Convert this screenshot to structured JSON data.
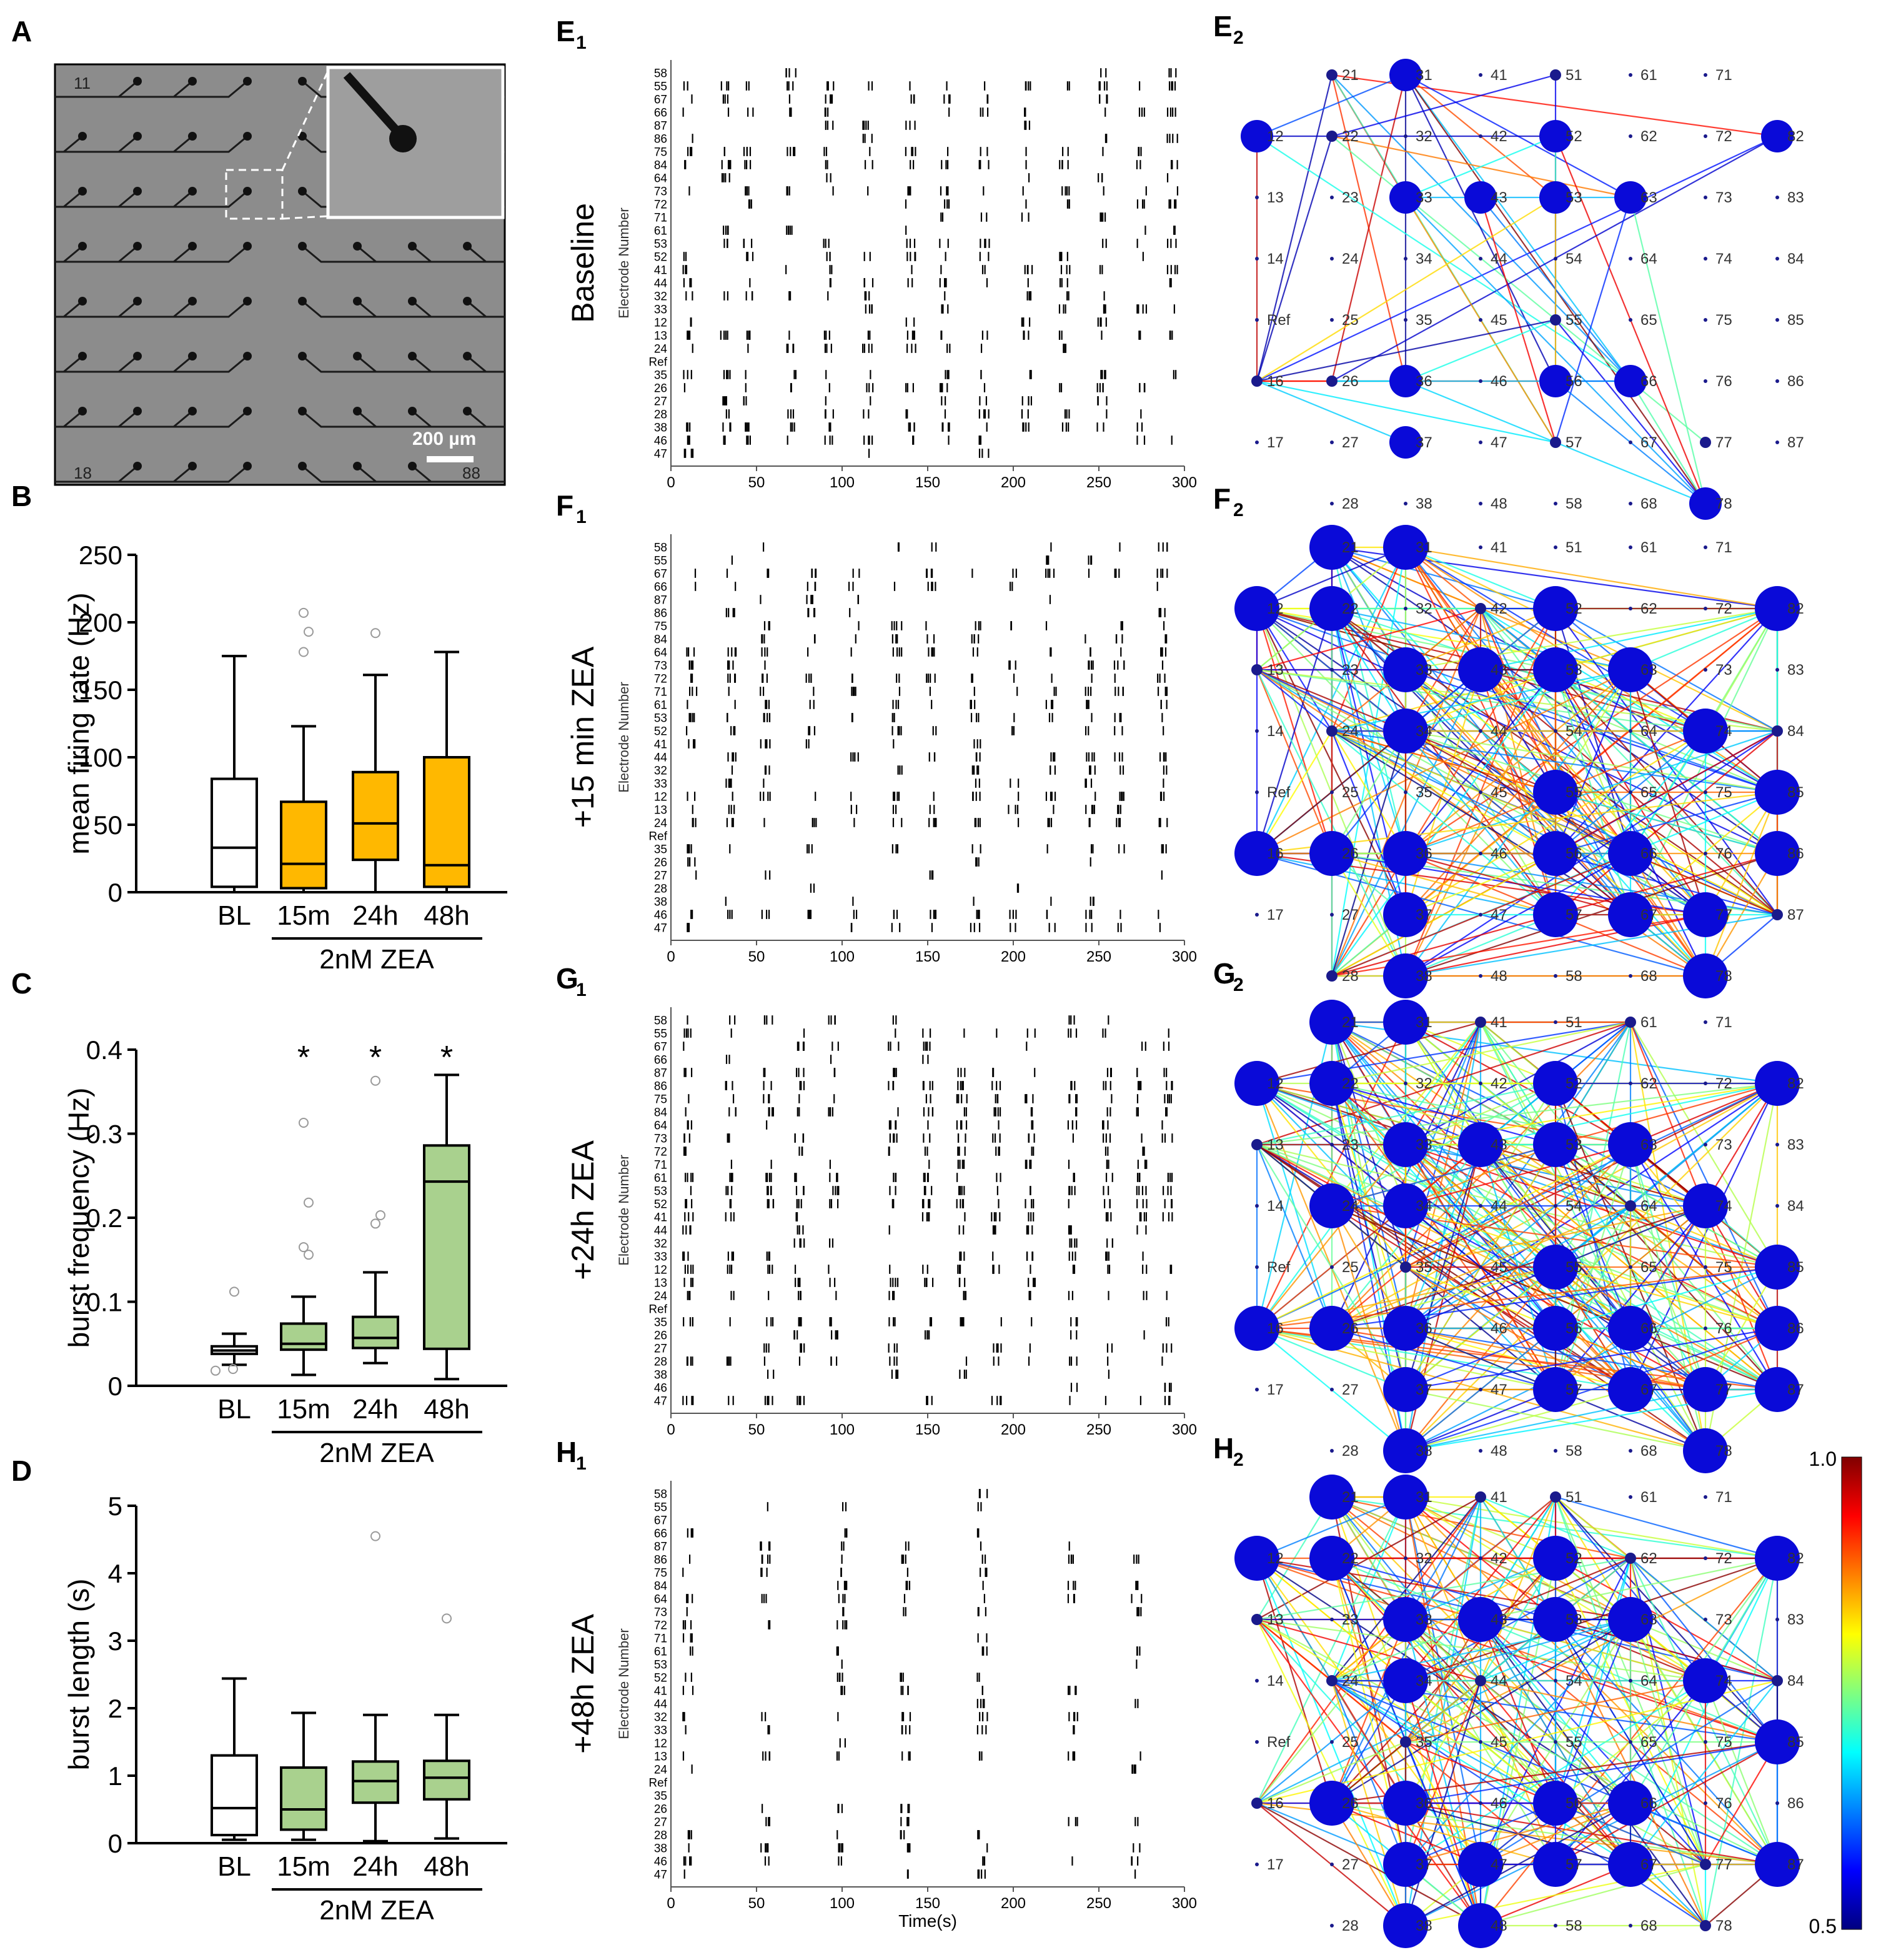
{
  "figure": {
    "microscopy": {
      "label": "A",
      "scale_bar": "200 µm",
      "corner_labels": [
        "11",
        "18",
        "88"
      ]
    }
  },
  "chart_data": [
    {
      "id": "B",
      "label": "B",
      "type": "boxplot",
      "ylabel": "mean firing rate (Hz)",
      "ylim": [
        0,
        250
      ],
      "yticks": [
        "0",
        "50",
        "100",
        "150",
        "200",
        "250"
      ],
      "categories": [
        "BL",
        "15m",
        "24h",
        "48h"
      ],
      "group_label": "2nM ZEA",
      "boxes": [
        {
          "min": 0,
          "q1": 4,
          "median": 33,
          "q3": 84,
          "max": 175,
          "color": "#ffffff",
          "outliers": [],
          "star": ""
        },
        {
          "min": 0,
          "q1": 3,
          "median": 21,
          "q3": 67,
          "max": 123,
          "color": "#ffb800",
          "outliers": [
            178,
            193,
            207
          ],
          "star": ""
        },
        {
          "min": 0,
          "q1": 24,
          "median": 51,
          "q3": 89,
          "max": 161,
          "color": "#ffb800",
          "outliers": [
            192
          ],
          "star": ""
        },
        {
          "min": 0,
          "q1": 4,
          "median": 20,
          "q3": 100,
          "max": 178,
          "color": "#ffb800",
          "outliers": [],
          "star": ""
        }
      ]
    },
    {
      "id": "C",
      "label": "C",
      "type": "boxplot",
      "ylabel": "burst frequency (Hz)",
      "ylim": [
        0,
        0.4
      ],
      "yticks": [
        "0",
        "0.1",
        "0.2",
        "0.3",
        "0.4"
      ],
      "categories": [
        "BL",
        "15m",
        "24h",
        "48h"
      ],
      "group_label": "2nM ZEA",
      "boxes": [
        {
          "min": 0.025,
          "q1": 0.038,
          "median": 0.042,
          "q3": 0.047,
          "max": 0.062,
          "color": "#ffffff",
          "outliers": [
            0.112,
            0.02,
            0.018
          ],
          "star": ""
        },
        {
          "min": 0.013,
          "q1": 0.043,
          "median": 0.05,
          "q3": 0.074,
          "max": 0.106,
          "color": "#a9d18e",
          "outliers": [
            0.313,
            0.218,
            0.165,
            0.156
          ],
          "star": "*"
        },
        {
          "min": 0.027,
          "q1": 0.045,
          "median": 0.057,
          "q3": 0.082,
          "max": 0.135,
          "color": "#a9d18e",
          "outliers": [
            0.363,
            0.203,
            0.193
          ],
          "star": "*"
        },
        {
          "min": 0.008,
          "q1": 0.044,
          "median": 0.243,
          "q3": 0.286,
          "max": 0.37,
          "color": "#a9d18e",
          "outliers": [],
          "star": "*"
        }
      ]
    },
    {
      "id": "D",
      "label": "D",
      "type": "boxplot",
      "ylabel": "burst length (s)",
      "ylim": [
        0,
        5
      ],
      "yticks": [
        "0",
        "1",
        "2",
        "3",
        "4",
        "5"
      ],
      "categories": [
        "BL",
        "15m",
        "24h",
        "48h"
      ],
      "group_label": "2nM ZEA",
      "boxes": [
        {
          "min": 0.05,
          "q1": 0.12,
          "median": 0.52,
          "q3": 1.3,
          "max": 2.44,
          "color": "#ffffff",
          "outliers": [],
          "star": ""
        },
        {
          "min": 0.05,
          "q1": 0.2,
          "median": 0.5,
          "q3": 1.12,
          "max": 1.93,
          "color": "#a9d18e",
          "outliers": [],
          "star": ""
        },
        {
          "min": 0.03,
          "q1": 0.6,
          "median": 0.92,
          "q3": 1.21,
          "max": 1.9,
          "color": "#a9d18e",
          "outliers": [
            4.55
          ],
          "star": ""
        },
        {
          "min": 0.07,
          "q1": 0.65,
          "median": 0.97,
          "q3": 1.22,
          "max": 1.9,
          "color": "#a9d18e",
          "outliers": [
            3.33
          ],
          "star": ""
        }
      ]
    },
    {
      "type": "raster",
      "panels": [
        {
          "label": "E",
          "sub": "1",
          "condition": "Baseline",
          "seed": 7,
          "bursts": [
            10,
            32,
            45,
            70,
            92,
            115,
            140,
            160,
            183,
            208,
            230,
            252,
            275,
            293
          ]
        },
        {
          "label": "F",
          "sub": "1",
          "condition": "+15 min ZEA",
          "seed": 13,
          "bursts": [
            12,
            35,
            55,
            82,
            107,
            132,
            152,
            178,
            200,
            222,
            245,
            262,
            287
          ]
        },
        {
          "label": "G",
          "sub": "1",
          "condition": "+24h ZEA",
          "seed": 21,
          "bursts": [
            10,
            35,
            57,
            75,
            95,
            130,
            150,
            170,
            190,
            210,
            235,
            255,
            275,
            290
          ]
        },
        {
          "label": "H",
          "sub": "1",
          "condition": "+48h ZEA",
          "seed": 29,
          "bursts": [
            10,
            55,
            100,
            137,
            182,
            235,
            272
          ]
        }
      ],
      "electrodes": [
        "58",
        "55",
        "67",
        "66",
        "87",
        "86",
        "75",
        "84",
        "64",
        "73",
        "72",
        "71",
        "61",
        "53",
        "52",
        "41",
        "44",
        "32",
        "33",
        "12",
        "13",
        "24",
        "Ref",
        "35",
        "26",
        "27",
        "28",
        "38",
        "46",
        "47"
      ],
      "xticks": [
        "0",
        "50",
        "100",
        "150",
        "200",
        "250",
        "300"
      ],
      "xlim": [
        0,
        300
      ],
      "ylabel": "Electrode Number",
      "xlabel": "Time(s)"
    },
    {
      "type": "network",
      "panels": [
        {
          "label": "E",
          "sub": "2",
          "seed": 101,
          "strength": 0.25,
          "active": [
            "21",
            "31",
            "51",
            "12",
            "22",
            "52",
            "82",
            "33",
            "43",
            "53",
            "63",
            "55",
            "16",
            "26",
            "36",
            "56",
            "66",
            "37",
            "57",
            "77",
            "78"
          ],
          "big": [
            "31",
            "12",
            "52",
            "82",
            "33",
            "43",
            "53",
            "63",
            "36",
            "56",
            "66",
            "37",
            "78"
          ]
        },
        {
          "label": "F",
          "sub": "2",
          "seed": 202,
          "strength": 0.55,
          "active": [
            "21",
            "31",
            "12",
            "22",
            "42",
            "52",
            "82",
            "13",
            "33",
            "43",
            "53",
            "63",
            "24",
            "34",
            "74",
            "84",
            "55",
            "85",
            "16",
            "26",
            "36",
            "56",
            "66",
            "86",
            "37",
            "57",
            "67",
            "77",
            "87",
            "28",
            "38",
            "78"
          ],
          "big": [
            "21",
            "31",
            "12",
            "22",
            "52",
            "82",
            "33",
            "43",
            "53",
            "63",
            "34",
            "74",
            "55",
            "85",
            "16",
            "26",
            "36",
            "56",
            "66",
            "86",
            "37",
            "57",
            "67",
            "77",
            "38",
            "78"
          ]
        },
        {
          "label": "G",
          "sub": "2",
          "seed": 303,
          "strength": 0.6,
          "active": [
            "21",
            "31",
            "41",
            "61",
            "12",
            "22",
            "52",
            "82",
            "13",
            "33",
            "43",
            "53",
            "63",
            "24",
            "34",
            "64",
            "74",
            "35",
            "55",
            "85",
            "16",
            "26",
            "36",
            "56",
            "66",
            "86",
            "37",
            "57",
            "67",
            "77",
            "87",
            "38",
            "78"
          ],
          "big": [
            "21",
            "31",
            "12",
            "22",
            "52",
            "82",
            "33",
            "43",
            "53",
            "63",
            "24",
            "34",
            "74",
            "55",
            "85",
            "16",
            "26",
            "36",
            "56",
            "66",
            "86",
            "37",
            "57",
            "67",
            "77",
            "87",
            "38",
            "78"
          ]
        },
        {
          "label": "H",
          "sub": "2",
          "seed": 404,
          "strength": 0.45,
          "active": [
            "21",
            "31",
            "41",
            "51",
            "12",
            "22",
            "52",
            "62",
            "82",
            "13",
            "33",
            "43",
            "53",
            "63",
            "24",
            "34",
            "44",
            "74",
            "84",
            "35",
            "85",
            "16",
            "26",
            "36",
            "56",
            "66",
            "37",
            "47",
            "57",
            "67",
            "77",
            "87",
            "38",
            "48",
            "78"
          ],
          "big": [
            "21",
            "31",
            "12",
            "22",
            "52",
            "82",
            "33",
            "43",
            "53",
            "63",
            "34",
            "74",
            "85",
            "26",
            "36",
            "56",
            "66",
            "37",
            "47",
            "57",
            "67",
            "87",
            "38",
            "48"
          ]
        }
      ],
      "grid_labels": [
        [
          "21",
          "31",
          "41",
          "51",
          "61",
          "71"
        ],
        [
          "12",
          "22",
          "32",
          "42",
          "52",
          "62",
          "72",
          "82"
        ],
        [
          "13",
          "23",
          "33",
          "43",
          "53",
          "63",
          "73",
          "83"
        ],
        [
          "14",
          "24",
          "34",
          "44",
          "54",
          "64",
          "74",
          "84"
        ],
        [
          "Ref",
          "25",
          "35",
          "45",
          "55",
          "65",
          "75",
          "85"
        ],
        [
          "16",
          "26",
          "36",
          "46",
          "56",
          "66",
          "76",
          "86"
        ],
        [
          "17",
          "27",
          "37",
          "47",
          "57",
          "67",
          "77",
          "87"
        ],
        [
          "28",
          "38",
          "48",
          "58",
          "68",
          "78"
        ]
      ],
      "colorbar": {
        "max": "1.0",
        "min": "0.5"
      }
    }
  ]
}
